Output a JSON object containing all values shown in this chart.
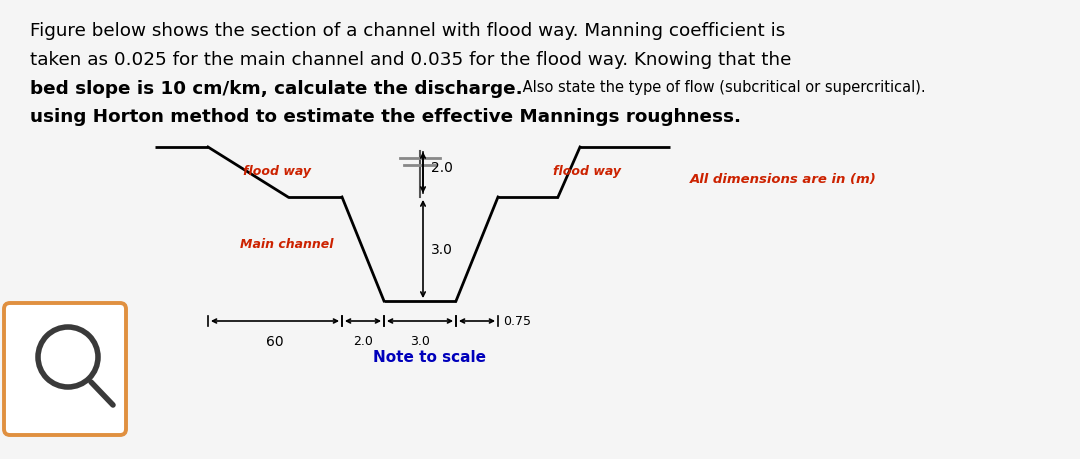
{
  "title_line1": "Figure below shows the section of a channel with flood way. Manning coefficient is",
  "title_line2": "taken as 0.025 for the main channel and 0.035 for the flood way. Knowing that the",
  "title_line3_bold": "bed slope is 10 cm/km, calculate the discharge.",
  "title_line3_small": " Also state the type of flow (subcritical or supercritical).",
  "title_line4": "using Horton method to estimate the effective Mannings roughness.",
  "flood_way_label": "flood way",
  "main_channel_label": "Main channel",
  "all_dimensions_label": "All dimensions are in (m)",
  "note_label": "Note to scale",
  "dim_2_0_vert_top": "2.0",
  "dim_3_0_vert": "3.0",
  "dim_60": "60",
  "dim_2_0b": "2.0",
  "dim_3_0b": "3.0",
  "dim_0_75": "0.75",
  "bg_color": "#f5f5f5",
  "text_color": "#000000",
  "label_color_red": "#cc2200",
  "label_color_blue": "#0000bb",
  "search_box_color": "#e09040",
  "channel_lw": 2.0,
  "dim_lw": 1.2
}
